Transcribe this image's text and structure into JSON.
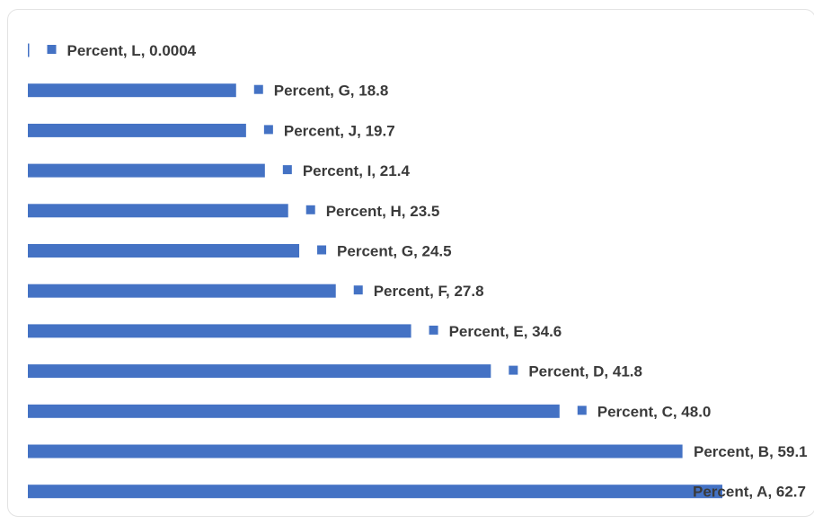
{
  "chart_data": {
    "type": "bar",
    "orientation": "horizontal",
    "series": [
      {
        "name": "Percent",
        "color": "#4472c4",
        "points": [
          {
            "category": "L",
            "value": 0.0004,
            "label": "Percent, L, 0.0004"
          },
          {
            "category": "G",
            "value": 18.8,
            "label": "Percent, G, 18.8"
          },
          {
            "category": "J",
            "value": 19.7,
            "label": "Percent, J, 19.7"
          },
          {
            "category": "I",
            "value": 21.4,
            "label": "Percent, I, 21.4"
          },
          {
            "category": "H",
            "value": 23.5,
            "label": "Percent, H, 23.5"
          },
          {
            "category": "G",
            "value": 24.5,
            "label": "Percent, G, 24.5"
          },
          {
            "category": "F",
            "value": 27.8,
            "label": "Percent, F, 27.8"
          },
          {
            "category": "E",
            "value": 34.6,
            "label": "Percent, E, 34.6"
          },
          {
            "category": "D",
            "value": 41.8,
            "label": "Percent, D, 41.8"
          },
          {
            "category": "C",
            "value": 48.0,
            "label": "Percent, C, 48.0"
          },
          {
            "category": "B",
            "value": 59.1,
            "label": "Percent, B, 59.1"
          },
          {
            "category": "A",
            "value": 62.7,
            "label": "Percent, A, 62.7"
          }
        ]
      }
    ],
    "xlim": [
      0,
      62.7
    ],
    "title": "",
    "xlabel": "",
    "ylabel": "",
    "grid": false,
    "legend": "none",
    "data_labels": "legend-key-with-series-category-value"
  }
}
